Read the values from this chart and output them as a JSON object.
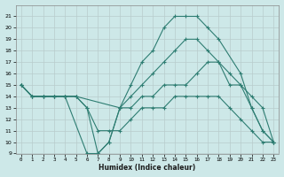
{
  "xlabel": "Humidex (Indice chaleur)",
  "bg_color": "#cde8e8",
  "grid_color": "#b8d8d8",
  "line_color": "#2e7d72",
  "xlim": [
    -0.5,
    23.5
  ],
  "ylim": [
    9,
    22
  ],
  "yticks": [
    9,
    10,
    11,
    12,
    13,
    14,
    15,
    16,
    17,
    18,
    19,
    20,
    21
  ],
  "xticks": [
    0,
    1,
    2,
    3,
    4,
    5,
    6,
    7,
    8,
    9,
    10,
    11,
    12,
    13,
    14,
    15,
    16,
    17,
    18,
    19,
    20,
    21,
    22,
    23
  ],
  "lines": [
    {
      "x": [
        0,
        1,
        2,
        3,
        4,
        6,
        7,
        8,
        9,
        10,
        11,
        12,
        13,
        14,
        15,
        16,
        17,
        18,
        20,
        21,
        22,
        23
      ],
      "y": [
        15,
        14,
        14,
        14,
        14,
        9,
        9,
        10,
        13,
        15,
        17,
        18,
        20,
        21,
        21,
        21,
        20,
        19,
        16,
        13,
        11,
        10
      ]
    },
    {
      "x": [
        0,
        1,
        2,
        3,
        4,
        5,
        9,
        10,
        11,
        12,
        13,
        14,
        15,
        16,
        17,
        18,
        19,
        20,
        21,
        22,
        23
      ],
      "y": [
        15,
        14,
        14,
        14,
        14,
        14,
        13,
        13,
        14,
        14,
        15,
        15,
        15,
        16,
        17,
        17,
        15,
        15,
        14,
        13,
        10
      ]
    },
    {
      "x": [
        0,
        1,
        2,
        3,
        4,
        5,
        6,
        7,
        8,
        9,
        10,
        11,
        12,
        13,
        14,
        15,
        16,
        17,
        18,
        19,
        20,
        21,
        22,
        23
      ],
      "y": [
        15,
        14,
        14,
        14,
        14,
        14,
        13,
        11,
        11,
        11,
        12,
        13,
        13,
        13,
        14,
        14,
        14,
        14,
        14,
        13,
        12,
        11,
        10,
        10
      ]
    },
    {
      "x": [
        0,
        1,
        2,
        3,
        4,
        5,
        6,
        7,
        8,
        9,
        10,
        11,
        12,
        13,
        14,
        15,
        16,
        17,
        18,
        19,
        20,
        21,
        22,
        23
      ],
      "y": [
        15,
        14,
        14,
        14,
        14,
        14,
        13,
        9,
        10,
        13,
        14,
        15,
        16,
        17,
        18,
        19,
        19,
        18,
        17,
        16,
        15,
        13,
        11,
        10
      ]
    }
  ]
}
